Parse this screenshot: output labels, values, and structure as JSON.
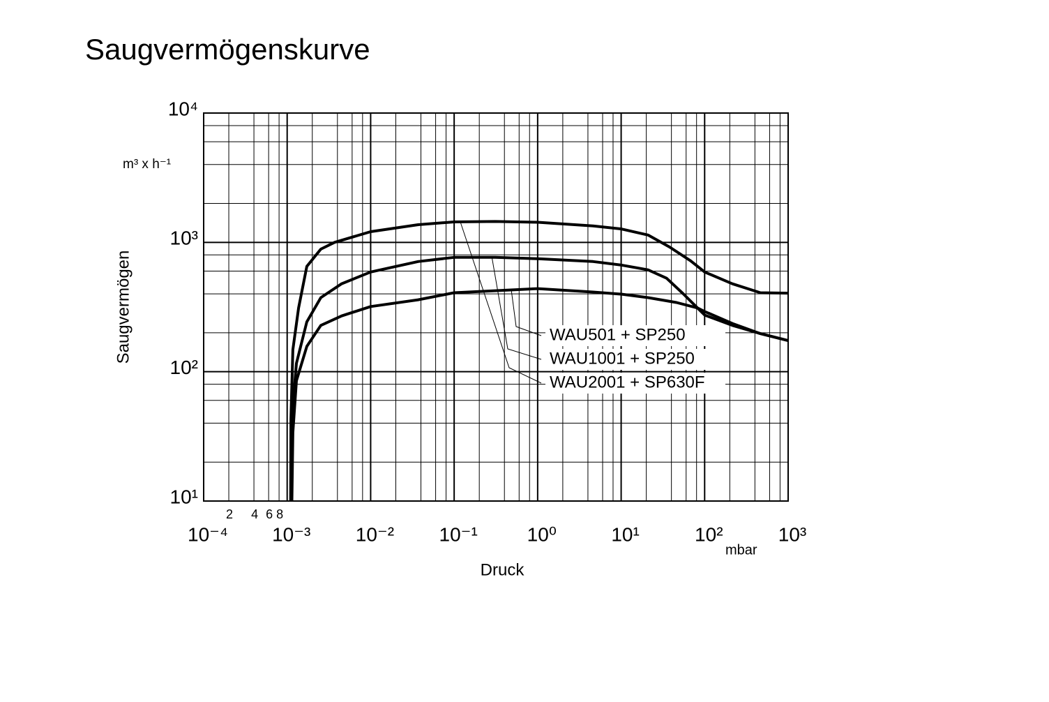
{
  "chart_data": {
    "type": "line",
    "title": "Saugvermögenskurve",
    "x_label": "Druck",
    "y_label": "Saugvermögen",
    "x_unit": "mbar",
    "y_unit": "m³ x h⁻¹",
    "xscale": "log",
    "yscale": "log",
    "grid": true,
    "xlim": [
      0.0001,
      1000
    ],
    "ylim": [
      10,
      10000
    ],
    "xticks": [
      {
        "value": 0.0001,
        "label": "10⁻⁴"
      },
      {
        "value": 0.001,
        "label": "10⁻³"
      },
      {
        "value": 0.01,
        "label": "10⁻²"
      },
      {
        "value": 0.1,
        "label": "10⁻¹"
      },
      {
        "value": 1,
        "label": "10⁰"
      },
      {
        "value": 10,
        "label": "10¹"
      },
      {
        "value": 100,
        "label": "10²"
      },
      {
        "value": 1000,
        "label": "10³"
      }
    ],
    "yticks": [
      {
        "value": 10,
        "label": "10¹"
      },
      {
        "value": 100,
        "label": "10²"
      },
      {
        "value": 1000,
        "label": "10³"
      },
      {
        "value": 10000,
        "label": "10⁴"
      }
    ],
    "xminorticks": [
      {
        "value": 0.0002,
        "label": "2"
      },
      {
        "value": 0.0004,
        "label": "4"
      },
      {
        "value": 0.0006,
        "label": "6"
      },
      {
        "value": 0.0008,
        "label": "8"
      }
    ],
    "minor_grid_multipliers": [
      2,
      4,
      6,
      8
    ],
    "series": [
      {
        "name": "WAU501 + SP250",
        "color": "#000000",
        "x": [
          0.00114,
          0.00117,
          0.00129,
          0.00172,
          0.00253,
          0.0045,
          0.01,
          0.037,
          0.1,
          0.31,
          1,
          4.6,
          10,
          21,
          46,
          82,
          100,
          215,
          465,
          1000
        ],
        "values": [
          10,
          34,
          85,
          157,
          228,
          270,
          319,
          360,
          408,
          423,
          439,
          413,
          398,
          374,
          343,
          311,
          292,
          236,
          197,
          174
        ]
      },
      {
        "name": "WAU1001 + SP250",
        "color": "#000000",
        "x": [
          0.00113,
          0.00117,
          0.00129,
          0.00172,
          0.00253,
          0.0045,
          0.01,
          0.037,
          0.1,
          0.31,
          1,
          4.6,
          10,
          21,
          35,
          56,
          82,
          100,
          215,
          465,
          1000
        ],
        "values": [
          10,
          55,
          116,
          243,
          374,
          479,
          590,
          711,
          766,
          766,
          747,
          711,
          668,
          613,
          528,
          398,
          311,
          274,
          228,
          197,
          174
        ]
      },
      {
        "name": "WAU2001 + SP630F",
        "color": "#000000",
        "x": [
          0.0011,
          0.00111,
          0.00117,
          0.00137,
          0.00172,
          0.00253,
          0.0037,
          0.01,
          0.037,
          0.1,
          0.31,
          1,
          4.6,
          10,
          21,
          38,
          68,
          100,
          215,
          465,
          1000
        ],
        "values": [
          10,
          43,
          148,
          311,
          652,
          887,
          1000,
          1210,
          1370,
          1440,
          1450,
          1430,
          1340,
          1270,
          1140,
          920,
          720,
          590,
          478,
          408,
          405
        ]
      }
    ]
  }
}
